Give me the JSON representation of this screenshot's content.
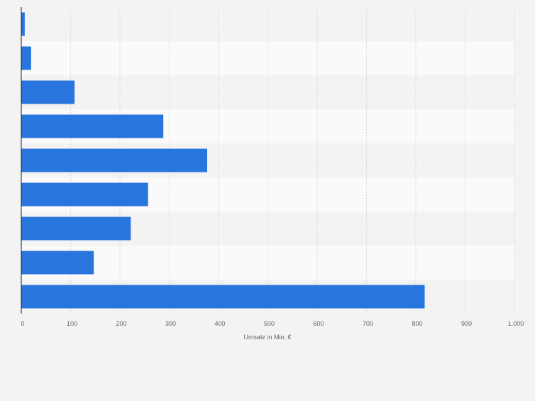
{
  "chart_data": {
    "type": "bar",
    "orientation": "horizontal",
    "categories": [
      "",
      "",
      "",
      "",
      "",
      "",
      "",
      "",
      ""
    ],
    "series": [
      {
        "values": [
          7,
          20,
          108,
          288,
          377,
          257,
          222,
          147,
          818
        ]
      }
    ],
    "xlabel": "Umsatz in Mio. €",
    "ylabel": "",
    "xlim": [
      0,
      1000
    ],
    "x_ticks": [
      0,
      100,
      200,
      300,
      400,
      500,
      600,
      700,
      800,
      900,
      1000
    ],
    "x_tick_labels": [
      "0",
      "100",
      "200",
      "300",
      "400",
      "500",
      "600",
      "700",
      "800",
      "900",
      "1.000"
    ],
    "grid": true,
    "legend": "none",
    "colors": {
      "bar": "#2876dd",
      "band_dark": "#f3f3f3",
      "band_light": "#fafafa",
      "grid": "#d7d7d7",
      "axis": "#1e1e1e",
      "text": "#666666"
    }
  }
}
